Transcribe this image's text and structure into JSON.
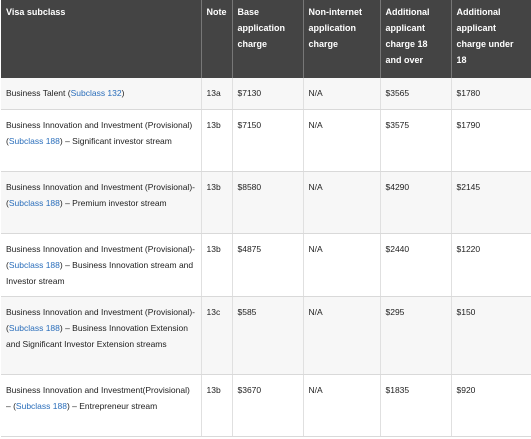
{
  "headers": [
    "Visa subclass",
    "Note",
    "Base application charge",
    "Non-internet application charge",
    "Additional applicant charge 18 and over",
    "Additional applicant charge under 18"
  ],
  "rows": [
    {
      "pre": "Business Talent (",
      "link": "Subclass 132",
      "post": ")",
      "note": "13a",
      "base": "$7130",
      "nonnet": "N/A",
      "adult": "$3565",
      "child": "$1780"
    },
    {
      "pre": "Business Innovation and Investment (Provisional) (",
      "link": "Subclass 188",
      "post": ") – Significant investor stream",
      "note": "13b",
      "base": "$7150",
      "nonnet": "N/A",
      "adult": "$3575",
      "child": "$1790"
    },
    {
      "pre": "Business Innovation and Investment (Provisional)- (",
      "link": "Subclass 188",
      "post": ") – Premium investor stream",
      "note": "13b",
      "base": "$8580",
      "nonnet": "N/A",
      "adult": "$4290",
      "child": "$2145"
    },
    {
      "pre": "Business Innovation and Investment (Provisional)- (",
      "link": "Subclass 188",
      "post": ") – Business Innovation stream and Investor stream",
      "note": "13b",
      "base": "$4875",
      "nonnet": "N/A",
      "adult": "$2440",
      "child": "$1220"
    },
    {
      "pre": "Business Innovation and Investment (Provisional)- (",
      "link": "Subclass 188",
      "post": ") – Business Innovation Extension and Significant Investor Extension streams",
      "note": "13c",
      "base": "$585",
      "nonnet": "N/A",
      "adult": "$295",
      "child": "$150"
    },
    {
      "pre": "Business Innovation and Investment(Provisional) – (",
      "link": "Subclass 188",
      "post": ") – Entrepreneur stream",
      "note": "13b",
      "base": "$3670",
      "nonnet": "N/A",
      "adult": "$1835",
      "child": "$920"
    }
  ]
}
